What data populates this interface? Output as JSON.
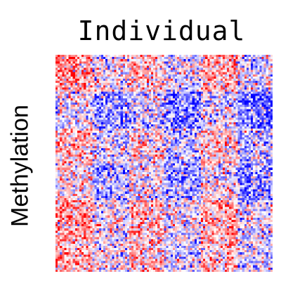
{
  "chart_data": {
    "type": "heatmap",
    "title": "Individual",
    "xlabel": "",
    "ylabel": "Methylation",
    "color_scale": {
      "low": "#0000ff",
      "mid": "#ffffff",
      "high": "#ff0000"
    },
    "grid": false,
    "legend": "none",
    "matrix_size": [
      100,
      100
    ],
    "block_pattern": {
      "row_blocks": [
        0.3,
        -0.45,
        0.1,
        -0.2,
        0.35,
        0.25
      ],
      "col_blocks": [
        0.35,
        -0.3,
        0.15,
        -0.45,
        0.25,
        -0.5
      ],
      "noise": 0.9
    }
  }
}
